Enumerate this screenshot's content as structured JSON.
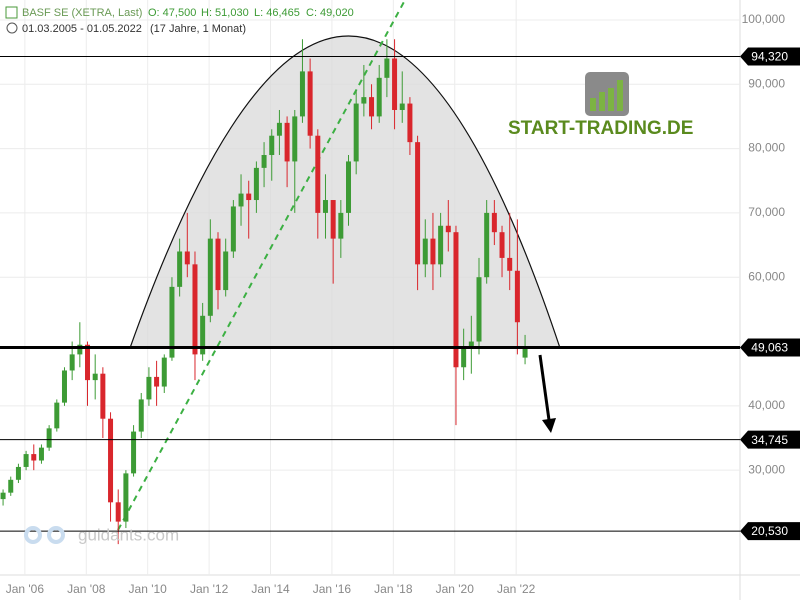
{
  "header": {
    "symbol": "BASF SE (XETRA, Last)",
    "quotes": [
      "O: 47,500",
      "H: 51,030",
      "L: 46,465",
      "C: 49,020"
    ],
    "range": "01.03.2005 - 01.05.2022",
    "duration": "(17 Jahre, 1 Monat)",
    "logo": "START-TRADING.DE",
    "watermark": "guidants.com"
  },
  "chart_data": {
    "type": "candlestick",
    "grid": true,
    "up_color": "#3d9b35",
    "down_color": "#d9262c",
    "x": [
      2005.29,
      2005.54,
      2005.79,
      2006.04,
      2006.29,
      2006.54,
      2006.79,
      2007.04,
      2007.29,
      2007.54,
      2007.79,
      2008.04,
      2008.29,
      2008.54,
      2008.79,
      2009.04,
      2009.29,
      2009.54,
      2009.79,
      2010.04,
      2010.29,
      2010.54,
      2010.79,
      2011.04,
      2011.29,
      2011.54,
      2011.79,
      2012.04,
      2012.29,
      2012.54,
      2012.79,
      2013.04,
      2013.29,
      2013.54,
      2013.79,
      2014.04,
      2014.29,
      2014.54,
      2014.79,
      2015.04,
      2015.29,
      2015.54,
      2015.79,
      2016.04,
      2016.29,
      2016.54,
      2016.79,
      2017.04,
      2017.29,
      2017.54,
      2017.79,
      2018.04,
      2018.29,
      2018.54,
      2018.79,
      2019.04,
      2019.29,
      2019.54,
      2019.79,
      2020.04,
      2020.29,
      2020.54,
      2020.79,
      2021.04,
      2021.29,
      2021.54,
      2021.79,
      2022.04,
      2022.29
    ],
    "open": [
      25500,
      26500,
      28500,
      30500,
      32500,
      31500,
      33500,
      36500,
      40500,
      45500,
      48000,
      49500,
      44000,
      45000,
      38000,
      25000,
      22000,
      29500,
      36000,
      41000,
      44500,
      43000,
      47500,
      58500,
      64000,
      62000,
      48000,
      54000,
      66000,
      58000,
      64000,
      71000,
      73000,
      72000,
      77000,
      79000,
      82000,
      84000,
      78000,
      85000,
      92000,
      82000,
      70000,
      72000,
      66000,
      70000,
      78000,
      87000,
      88000,
      85000,
      91000,
      94000,
      86000,
      87000,
      81000,
      62000,
      66000,
      62000,
      68000,
      67000,
      46000,
      49000,
      50000,
      60000,
      70000,
      67000,
      63000,
      61000,
      47500
    ],
    "high": [
      27000,
      29000,
      31000,
      33000,
      34000,
      34000,
      37000,
      41000,
      46000,
      50000,
      53000,
      50000,
      48000,
      46000,
      39000,
      27000,
      30000,
      37000,
      42000,
      46000,
      47000,
      48000,
      60000,
      66000,
      70000,
      64000,
      56000,
      69000,
      67000,
      66000,
      72000,
      76000,
      75000,
      78000,
      81000,
      83000,
      86000,
      85000,
      86000,
      97000,
      94000,
      83000,
      76000,
      72000,
      72000,
      79000,
      89000,
      93000,
      90000,
      93000,
      97000,
      97000,
      92000,
      88000,
      82000,
      69000,
      70000,
      70000,
      72000,
      68000,
      52000,
      54000,
      63000,
      72000,
      72000,
      68000,
      70000,
      69000,
      51030
    ],
    "low": [
      24500,
      26000,
      28000,
      30000,
      30000,
      31000,
      33000,
      36000,
      40000,
      44000,
      46000,
      40000,
      41000,
      35000,
      22000,
      18500,
      21000,
      29000,
      35000,
      40000,
      40000,
      42000,
      47000,
      57000,
      60000,
      44000,
      47000,
      53000,
      55000,
      57000,
      63000,
      68000,
      66000,
      70000,
      74000,
      75000,
      79000,
      74000,
      70000,
      84000,
      80000,
      66000,
      66000,
      59000,
      63000,
      68000,
      76000,
      85000,
      83000,
      84000,
      88000,
      83000,
      84000,
      79000,
      58000,
      60000,
      58000,
      60000,
      64000,
      37000,
      44000,
      45000,
      48000,
      59000,
      65000,
      60000,
      58000,
      48000,
      46465
    ],
    "close": [
      26500,
      28500,
      30500,
      32500,
      31500,
      33500,
      36500,
      40500,
      45500,
      48000,
      49500,
      44000,
      45000,
      38000,
      25000,
      22000,
      29500,
      36000,
      41000,
      44500,
      43000,
      47500,
      58500,
      64000,
      62000,
      48000,
      54000,
      66000,
      58000,
      64000,
      71000,
      73000,
      72000,
      77000,
      79000,
      82000,
      84000,
      78000,
      85000,
      92000,
      82000,
      70000,
      72000,
      66000,
      70000,
      78000,
      87000,
      88000,
      85000,
      91000,
      94000,
      86000,
      87000,
      81000,
      62000,
      66000,
      62000,
      68000,
      67000,
      46000,
      49000,
      50000,
      60000,
      70000,
      67000,
      63000,
      61000,
      53000,
      49020
    ],
    "xlim": [
      2005.19,
      2029.29
    ],
    "ylim": [
      13700,
      103100
    ],
    "xticks": [
      {
        "value": 2006,
        "label": "Jan '06"
      },
      {
        "value": 2008,
        "label": "Jan '08"
      },
      {
        "value": 2010,
        "label": "Jan '10"
      },
      {
        "value": 2012,
        "label": "Jan '12"
      },
      {
        "value": 2014,
        "label": "Jan '14"
      },
      {
        "value": 2016,
        "label": "Jan '16"
      },
      {
        "value": 2018,
        "label": "Jan '18"
      },
      {
        "value": 2020,
        "label": "Jan '20"
      },
      {
        "value": 2022,
        "label": "Jan '22"
      }
    ],
    "yticks": [
      {
        "value": 30000,
        "label": "30,000"
      },
      {
        "value": 40000,
        "label": "40,000"
      },
      {
        "value": 60000,
        "label": "60,000"
      },
      {
        "value": 70000,
        "label": "70,000"
      },
      {
        "value": 80000,
        "label": "80,000"
      },
      {
        "value": 90000,
        "label": "90,000"
      },
      {
        "value": 100000,
        "label": "100,000"
      }
    ],
    "levels": [
      {
        "value": 94320,
        "label": "94,320"
      },
      {
        "value": 49063,
        "label": "49,063",
        "thick": true
      },
      {
        "value": 34745,
        "label": "34,745"
      },
      {
        "value": 20530,
        "label": "20,530"
      }
    ]
  }
}
